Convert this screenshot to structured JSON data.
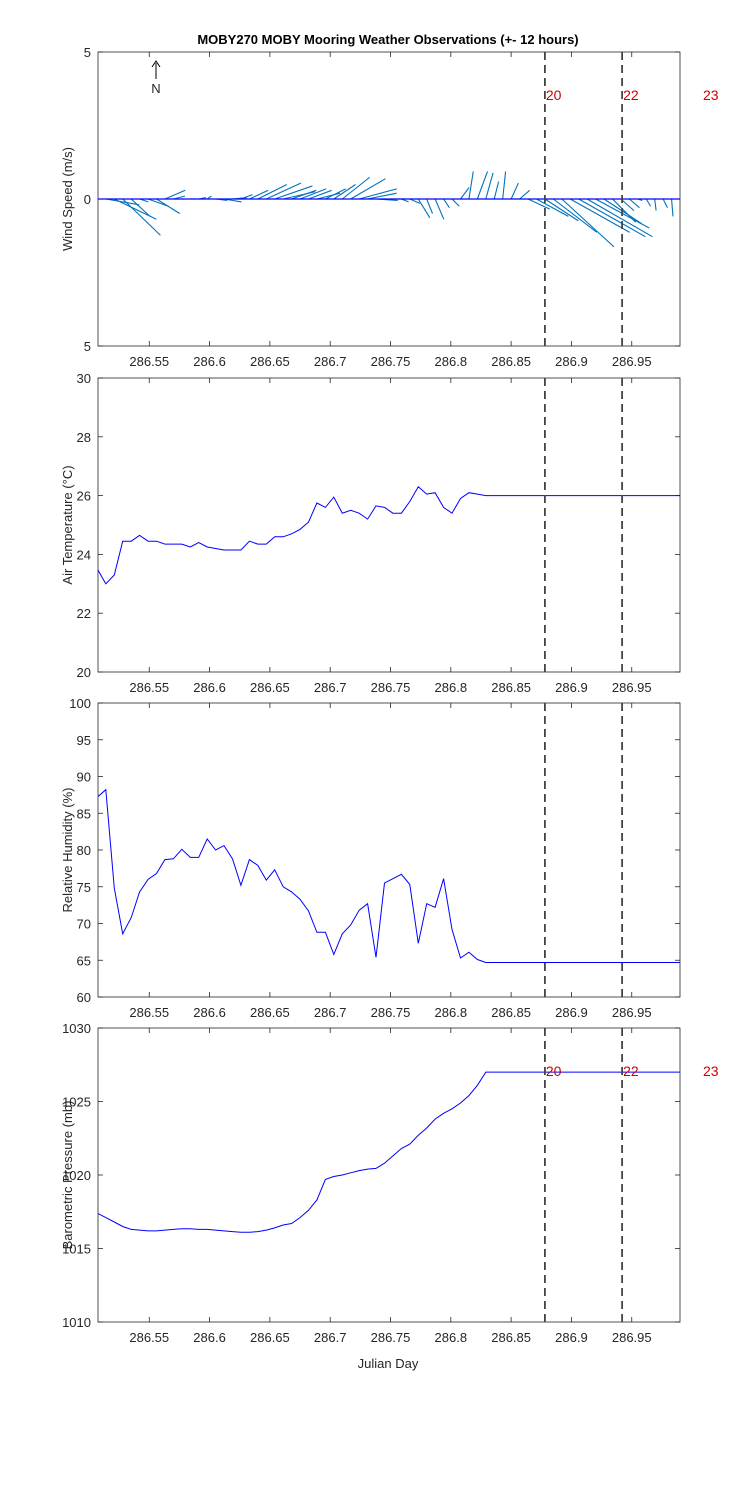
{
  "title": "MOBY270 MOBY Mooring Weather Observations (+- 12 hours)",
  "xlabel": "Julian Day",
  "x_ticks": [
    286.55,
    286.6,
    286.65,
    286.7,
    286.75,
    286.8,
    286.85,
    286.9,
    286.95
  ],
  "x_tick_labels": [
    "286.55",
    "286.6",
    "286.65",
    "286.7",
    "286.75",
    "286.8",
    "286.85",
    "286.9",
    "286.95"
  ],
  "xlim": [
    286.5075,
    286.99
  ],
  "north_label": "N",
  "colors": {
    "line": "#0000ff",
    "wind": "#0072bd",
    "marker": "#cc0000",
    "vline": "#444444",
    "axis": "#262626"
  },
  "time_markers": [
    {
      "label": "20",
      "x": 286.878,
      "line": true
    },
    {
      "label": "22",
      "x": 286.942,
      "line": true
    },
    {
      "label": "23",
      "x": 287.0,
      "line": false
    }
  ],
  "chart_data": [
    {
      "type": "line",
      "subtype": "wind-stick",
      "ylabel": "Wind Speed (m/s)",
      "ylim": [
        -5,
        5
      ],
      "y_ticks": [
        5,
        0,
        -5
      ],
      "y_tick_labels": [
        "5",
        "0",
        "5"
      ],
      "shows_time_marker_labels": true,
      "series": [
        {
          "x": [
            286.514,
            286.521,
            286.528,
            286.535,
            286.542,
            286.549,
            286.556,
            286.563,
            286.57,
            286.577,
            286.584,
            286.591,
            286.598,
            286.605,
            286.612,
            286.619,
            286.626,
            286.633,
            286.64,
            286.647,
            286.654,
            286.661,
            286.668,
            286.675,
            286.682,
            286.689,
            286.696,
            286.703,
            286.71,
            286.717,
            286.724,
            286.731,
            286.738,
            286.745,
            286.752,
            286.759,
            286.766,
            286.773,
            286.78,
            286.787,
            286.794,
            286.801,
            286.808,
            286.815,
            286.822,
            286.829,
            286.836,
            286.843,
            286.85,
            286.857,
            286.864,
            286.871,
            286.878,
            286.885,
            286.892,
            286.899,
            286.906,
            286.913,
            286.92,
            286.927,
            286.934,
            286.941,
            286.948,
            286.955,
            286.962,
            286.969,
            286.976,
            286.983,
            286.99
          ],
          "u": [
            2.3,
            2.9,
            2.6,
            1.3,
            0.6,
            1.4,
            1.6,
            1.4,
            0.8,
            0.2,
            0.4,
            0.5,
            0.3,
            0.8,
            1.2,
            1.0,
            0.8,
            1.3,
            2.0,
            2.4,
            2.6,
            2.2,
            1.7,
            1.8,
            1.6,
            1.6,
            1.4,
            1.5,
            1.9,
            2.4,
            2.6,
            2.0,
            1.5,
            1.8,
            0.9,
            0.5,
            0.7,
            0.8,
            0.4,
            0.6,
            0.4,
            0.5,
            0.6,
            0.3,
            0.7,
            0.5,
            0.3,
            0.2,
            0.5,
            0.7,
            1.5,
            2.2,
            2.3,
            3.0,
            3.6,
            4.1,
            4.6,
            4.5,
            3.7,
            2.6,
            1.6,
            0.9,
            0.7,
            0.3,
            0.3,
            0.1,
            0.3,
            0.1,
            0.2
          ],
          "v": [
            -0.4,
            -1.4,
            -2.5,
            -1.2,
            -0.2,
            -0.5,
            -1.0,
            0.6,
            0.2,
            0.0,
            0.0,
            0.1,
            0.2,
            -0.1,
            -0.2,
            0.1,
            0.3,
            0.6,
            1.0,
            1.1,
            0.9,
            0.5,
            0.6,
            0.7,
            0.6,
            0.4,
            0.7,
            1.0,
            1.5,
            1.4,
            0.7,
            0.4,
            -0.1,
            0.0,
            0.0,
            -0.2,
            -0.3,
            -1.3,
            -1.0,
            -1.4,
            -0.6,
            -0.5,
            0.8,
            1.9,
            1.9,
            1.8,
            1.2,
            1.9,
            1.1,
            0.6,
            -0.7,
            -1.2,
            -1.5,
            -2.3,
            -3.3,
            -2.3,
            -2.6,
            -2.6,
            -2.0,
            -1.7,
            -1.6,
            -0.8,
            -0.6,
            -0.1,
            -0.5,
            -0.8,
            -0.6,
            -1.2,
            -1.6
          ]
        }
      ]
    },
    {
      "type": "line",
      "ylabel": "Air Temperature (°C)",
      "ylim": [
        20,
        30
      ],
      "y_ticks": [
        20,
        22,
        24,
        26,
        28,
        30
      ],
      "y_tick_labels": [
        "20",
        "22",
        "24",
        "26",
        "28",
        "30"
      ],
      "shows_time_marker_labels": false,
      "series": [
        {
          "x": [
            286.507,
            286.514,
            286.521,
            286.528,
            286.535,
            286.542,
            286.549,
            286.556,
            286.563,
            286.57,
            286.577,
            286.584,
            286.591,
            286.598,
            286.605,
            286.612,
            286.619,
            286.626,
            286.633,
            286.64,
            286.647,
            286.654,
            286.661,
            286.668,
            286.675,
            286.682,
            286.689,
            286.696,
            286.703,
            286.71,
            286.717,
            286.724,
            286.731,
            286.738,
            286.745,
            286.752,
            286.759,
            286.766,
            286.773,
            286.78,
            286.787,
            286.794,
            286.801,
            286.808,
            286.815,
            286.822,
            286.829,
            286.836,
            286.843,
            286.85,
            286.857,
            286.864,
            286.871,
            286.878,
            286.885,
            286.892,
            286.899,
            286.906,
            286.913,
            286.92,
            286.927,
            286.934,
            286.941,
            286.948,
            286.955,
            286.962,
            286.969,
            286.976,
            286.983,
            286.99
          ],
          "y": [
            23.5,
            23.0,
            23.3,
            24.45,
            24.45,
            24.65,
            24.45,
            24.45,
            24.35,
            24.35,
            24.35,
            24.25,
            24.4,
            24.25,
            24.2,
            24.15,
            24.15,
            24.15,
            24.45,
            24.35,
            24.35,
            24.6,
            24.6,
            24.7,
            24.85,
            25.1,
            25.75,
            25.6,
            25.95,
            25.4,
            25.5,
            25.4,
            25.2,
            25.65,
            25.6,
            25.4,
            25.4,
            25.8,
            26.3,
            26.05,
            26.1,
            25.6,
            25.4,
            25.9,
            26.1,
            26.05,
            26.0,
            26.0,
            26.0,
            26.0,
            26.0,
            26.0,
            26.0,
            26.0,
            26.0,
            26.0,
            26.0,
            26.0,
            26.0,
            26.0,
            26.0,
            26.0,
            26.0,
            26.0,
            26.0,
            26.0,
            26.0,
            26.0,
            26.0,
            26.0
          ]
        }
      ]
    },
    {
      "type": "line",
      "ylabel": "Relative Humidity (%)",
      "ylim": [
        60,
        100
      ],
      "y_ticks": [
        60,
        65,
        70,
        75,
        80,
        85,
        90,
        95,
        100
      ],
      "y_tick_labels": [
        "60",
        "65",
        "70",
        "75",
        "80",
        "85",
        "90",
        "95",
        "100"
      ],
      "shows_time_marker_labels": false,
      "series": [
        {
          "x": [
            286.507,
            286.514,
            286.521,
            286.528,
            286.535,
            286.542,
            286.549,
            286.556,
            286.563,
            286.57,
            286.577,
            286.584,
            286.591,
            286.598,
            286.605,
            286.612,
            286.619,
            286.626,
            286.633,
            286.64,
            286.647,
            286.654,
            286.661,
            286.668,
            286.675,
            286.682,
            286.689,
            286.696,
            286.703,
            286.71,
            286.717,
            286.724,
            286.731,
            286.738,
            286.745,
            286.752,
            286.759,
            286.766,
            286.773,
            286.78,
            286.787,
            286.794,
            286.801,
            286.808,
            286.815,
            286.822,
            286.829,
            286.836,
            286.843,
            286.85,
            286.857,
            286.864,
            286.871,
            286.878,
            286.885,
            286.892,
            286.899,
            286.906,
            286.913,
            286.92,
            286.927,
            286.934,
            286.941,
            286.948,
            286.955,
            286.962,
            286.969,
            286.976,
            286.983,
            286.99
          ],
          "y": [
            87.2,
            88.2,
            74.8,
            68.6,
            70.8,
            74.3,
            76.0,
            76.8,
            78.7,
            78.8,
            80.1,
            79.0,
            79.0,
            81.5,
            80.0,
            80.6,
            78.8,
            75.2,
            78.7,
            77.9,
            75.9,
            77.3,
            75.0,
            74.3,
            73.3,
            71.7,
            68.8,
            68.8,
            65.8,
            68.6,
            69.8,
            71.8,
            72.7,
            65.4,
            75.5,
            76.1,
            76.7,
            75.3,
            67.3,
            72.7,
            72.2,
            76.1,
            69.2,
            65.3,
            66.1,
            65.1,
            64.7,
            64.7,
            64.7,
            64.7,
            64.7,
            64.7,
            64.7,
            64.7,
            64.7,
            64.7,
            64.7,
            64.7,
            64.7,
            64.7,
            64.7,
            64.7,
            64.7,
            64.7,
            64.7,
            64.7,
            64.7,
            64.7,
            64.7,
            64.7
          ]
        }
      ]
    },
    {
      "type": "line",
      "ylabel": "Barometric Pressure (mb)",
      "ylim": [
        1010,
        1030
      ],
      "y_ticks": [
        1010,
        1015,
        1020,
        1025,
        1030
      ],
      "y_tick_labels": [
        "1010",
        "1015",
        "1020",
        "1025",
        "1030"
      ],
      "shows_time_marker_labels": true,
      "series": [
        {
          "x": [
            286.507,
            286.514,
            286.521,
            286.528,
            286.535,
            286.542,
            286.549,
            286.556,
            286.563,
            286.57,
            286.577,
            286.584,
            286.591,
            286.598,
            286.605,
            286.612,
            286.619,
            286.626,
            286.633,
            286.64,
            286.647,
            286.654,
            286.661,
            286.668,
            286.675,
            286.682,
            286.689,
            286.696,
            286.703,
            286.71,
            286.717,
            286.724,
            286.731,
            286.738,
            286.745,
            286.752,
            286.759,
            286.766,
            286.773,
            286.78,
            286.787,
            286.794,
            286.801,
            286.808,
            286.815,
            286.822,
            286.829,
            286.836,
            286.843,
            286.85,
            286.857,
            286.864,
            286.871,
            286.878,
            286.885,
            286.892,
            286.899,
            286.906,
            286.913,
            286.92,
            286.927,
            286.934,
            286.941,
            286.948,
            286.955,
            286.962,
            286.969,
            286.976,
            286.983,
            286.99
          ],
          "y": [
            1017.4,
            1017.1,
            1016.8,
            1016.5,
            1016.3,
            1016.25,
            1016.2,
            1016.2,
            1016.25,
            1016.3,
            1016.35,
            1016.35,
            1016.3,
            1016.3,
            1016.25,
            1016.2,
            1016.15,
            1016.1,
            1016.1,
            1016.15,
            1016.25,
            1016.4,
            1016.6,
            1016.7,
            1017.1,
            1017.6,
            1018.3,
            1019.7,
            1019.9,
            1020.0,
            1020.15,
            1020.3,
            1020.4,
            1020.45,
            1020.8,
            1021.3,
            1021.8,
            1022.1,
            1022.7,
            1023.2,
            1023.8,
            1024.2,
            1024.5,
            1024.9,
            1025.4,
            1026.1,
            1027.0,
            1027.0,
            1027.0,
            1027.0,
            1027.0,
            1027.0,
            1027.0,
            1027.0,
            1027.0,
            1027.0,
            1027.0,
            1027.0,
            1027.0,
            1027.0,
            1027.0,
            1027.0,
            1027.0,
            1027.0,
            1027.0,
            1027.0,
            1027.0,
            1027.0,
            1027.0,
            1027.0
          ]
        }
      ]
    }
  ]
}
